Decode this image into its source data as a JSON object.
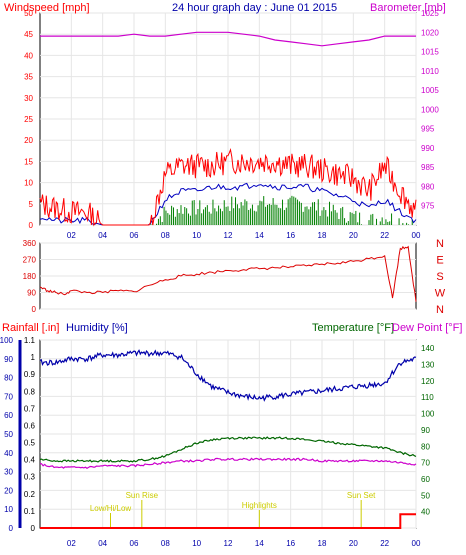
{
  "colors": {
    "wind": "#ff0000",
    "wind_avg": "#0000c0",
    "gust_fill": "#008000",
    "barometer": "#cc00cc",
    "direction": "#dd0000",
    "rain": "#ff0000",
    "humidity": "#0000aa",
    "temperature": "#006600",
    "dewpoint": "#cc00cc",
    "solar": "#cccc00",
    "title": "#0000aa",
    "frame": "#000000"
  },
  "chart_data": [
    {
      "type": "line",
      "title": "24 hour graph day : June 01 2015",
      "ylabel": "Windspeed [mph]",
      "y2label": "Barometer [mb]",
      "x_ticks": [
        "02",
        "04",
        "06",
        "08",
        "10",
        "12",
        "14",
        "16",
        "18",
        "20",
        "22",
        "00"
      ],
      "x": [
        0,
        1,
        2,
        3,
        4,
        5,
        6,
        7,
        8,
        9,
        10,
        11,
        12,
        13,
        14,
        15,
        16,
        17,
        18,
        19,
        20,
        21,
        22,
        23,
        24
      ],
      "ylim": [
        0,
        50
      ],
      "y_ticks": [
        0,
        5,
        10,
        15,
        20,
        25,
        30,
        35,
        40,
        45,
        50
      ],
      "y2lim": [
        970,
        1025
      ],
      "y2_ticks": [
        975,
        980,
        985,
        990,
        995,
        1000,
        1005,
        1010,
        1015,
        1020,
        1025
      ],
      "series": [
        {
          "values": [
            5,
            4,
            3,
            3,
            0,
            0,
            0,
            0,
            12,
            14,
            14,
            14,
            15,
            15,
            15,
            15,
            14,
            14,
            13,
            12,
            11,
            8,
            14,
            8,
            3
          ]
        },
        {
          "values": [
            2,
            1,
            1,
            1,
            0,
            0,
            0,
            0,
            6,
            8,
            8,
            9,
            9,
            9,
            10,
            9,
            9,
            9,
            8,
            7,
            6,
            4,
            6,
            3,
            1
          ]
        },
        {
          "values": [
            0,
            0,
            0,
            0,
            0,
            0,
            0,
            0,
            3,
            4,
            4,
            4,
            5,
            5,
            5,
            5,
            5,
            5,
            4,
            3,
            2,
            1,
            2,
            1,
            0
          ]
        },
        {
          "values": [
            1019,
            1019,
            1019,
            1019,
            1019,
            1019,
            1019.5,
            1019,
            1019,
            1019.5,
            1020,
            1020,
            1020,
            1019.5,
            1019,
            1018,
            1017.5,
            1017,
            1016.5,
            1017,
            1017.5,
            1018,
            1019,
            1019,
            1019
          ]
        }
      ]
    },
    {
      "type": "scatter",
      "ylim": [
        0,
        360
      ],
      "y_ticks": [
        0,
        90,
        180,
        270,
        360
      ],
      "y2_ticks": [
        "N",
        "W",
        "S",
        "E",
        "N"
      ],
      "x": [
        0,
        0.5,
        1,
        1.5,
        2,
        3,
        4,
        5,
        6,
        7,
        8,
        9,
        10,
        11,
        12,
        13,
        14,
        15,
        16,
        17,
        18,
        19,
        20,
        21,
        22,
        22.5,
        23,
        23.5,
        24
      ],
      "values": [
        120,
        100,
        90,
        80,
        100,
        90,
        90,
        100,
        95,
        130,
        160,
        180,
        190,
        200,
        210,
        215,
        220,
        225,
        230,
        235,
        245,
        250,
        260,
        275,
        290,
        60,
        330,
        340,
        40
      ]
    },
    {
      "type": "line",
      "ylabel": "Rainfall [.in]",
      "y1label": "Humidity [%]",
      "y2label": "Temperature [°F]",
      "y3label": "Dew Point [°F]",
      "x_ticks": [
        "02",
        "04",
        "06",
        "08",
        "10",
        "12",
        "14",
        "16",
        "18",
        "20",
        "22",
        "00"
      ],
      "x": [
        0,
        1,
        2,
        3,
        4,
        5,
        6,
        7,
        8,
        9,
        10,
        11,
        12,
        13,
        14,
        15,
        16,
        17,
        18,
        19,
        20,
        21,
        22,
        23,
        24
      ],
      "humidity_ylim": [
        0,
        100
      ],
      "humidity_ticks": [
        0,
        10,
        20,
        30,
        40,
        50,
        60,
        70,
        80,
        90,
        100
      ],
      "rain_ylim": [
        0,
        1.1
      ],
      "rain_ticks": [
        "0",
        "0.1",
        "0.2",
        "0.3",
        "0.4",
        "0.5",
        "0.6",
        "0.7",
        "0.8",
        "0.9",
        "1",
        "1.1"
      ],
      "temp_ylim": [
        30,
        145
      ],
      "temp_ticks": [
        40,
        50,
        60,
        70,
        80,
        90,
        100,
        110,
        120,
        130,
        140
      ],
      "annotations": [
        "Sun Rise",
        "Low/Hi/Low",
        "Highlights",
        "Sun Set"
      ],
      "series": [
        {
          "values": [
            88,
            88,
            90,
            90,
            92,
            92,
            93,
            93,
            93,
            91,
            82,
            75,
            72,
            70,
            69,
            70,
            71,
            72,
            73,
            74,
            75,
            76,
            77,
            88,
            90
          ]
        },
        {
          "values": [
            0,
            0,
            0,
            0,
            0,
            0,
            0,
            0,
            0,
            0,
            0,
            0,
            0,
            0,
            0,
            0,
            0,
            0,
            0,
            0,
            0,
            0,
            0,
            0.08,
            0.08
          ]
        },
        {
          "values": [
            72,
            71,
            71,
            71,
            71,
            71,
            71,
            72,
            74,
            78,
            82,
            84,
            85,
            85,
            85,
            85,
            85,
            84,
            83,
            82,
            81,
            80,
            79,
            76,
            74
          ]
        },
        {
          "values": [
            69,
            67,
            67,
            67,
            68,
            68,
            68,
            69,
            70,
            71,
            71,
            72,
            72,
            72,
            72,
            72,
            72,
            72,
            71,
            71,
            71,
            71,
            71,
            70,
            69
          ]
        }
      ]
    }
  ]
}
